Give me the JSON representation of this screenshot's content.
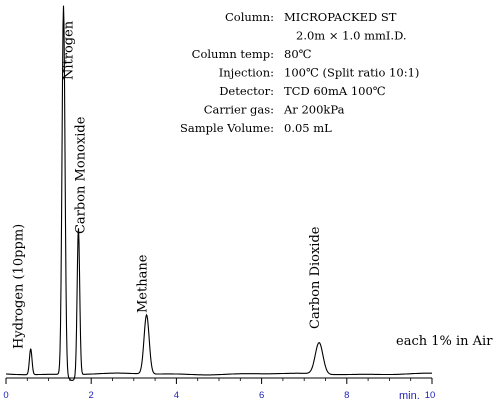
{
  "chart_data": {
    "type": "line",
    "title": "",
    "xlabel": "min.",
    "ylabel": "",
    "xlim": [
      0,
      10
    ],
    "x_ticks": [
      0,
      2,
      4,
      6,
      8,
      10
    ],
    "x_tick_labels": [
      "0",
      "2",
      "4",
      "6",
      "8",
      "10"
    ],
    "grid": false,
    "line_color": "#000000",
    "axis_label_color": "#2222bb",
    "baseline_note": "each 1% in Air",
    "peaks": [
      {
        "name": "Hydrogen (10ppm)",
        "retention_time": 0.58,
        "relative_height": 0.07
      },
      {
        "name": "Nitrogen",
        "retention_time": 1.35,
        "relative_height": 1.0
      },
      {
        "name": "Carbon Monoxide",
        "retention_time": 1.7,
        "relative_height": 0.4
      },
      {
        "name": "Methane",
        "retention_time": 3.3,
        "relative_height": 0.16
      },
      {
        "name": "Carbon Dioxide",
        "retention_time": 7.35,
        "relative_height": 0.085
      }
    ],
    "conditions": [
      {
        "label": "Column:",
        "value": "MICROPACKED ST"
      },
      {
        "label": "",
        "value": "2.0m  ×  1.0 mmI.D."
      },
      {
        "label": "Column temp:",
        "value": "80℃"
      },
      {
        "label": "Injection:",
        "value": "100℃  (Split ratio 10:1)"
      },
      {
        "label": "Detector:",
        "value": "TCD   60mA   100℃"
      },
      {
        "label": "Carrier gas:",
        "value": "Ar   200kPa"
      },
      {
        "label": "Sample Volume:",
        "value": "0.05 mL"
      }
    ]
  }
}
